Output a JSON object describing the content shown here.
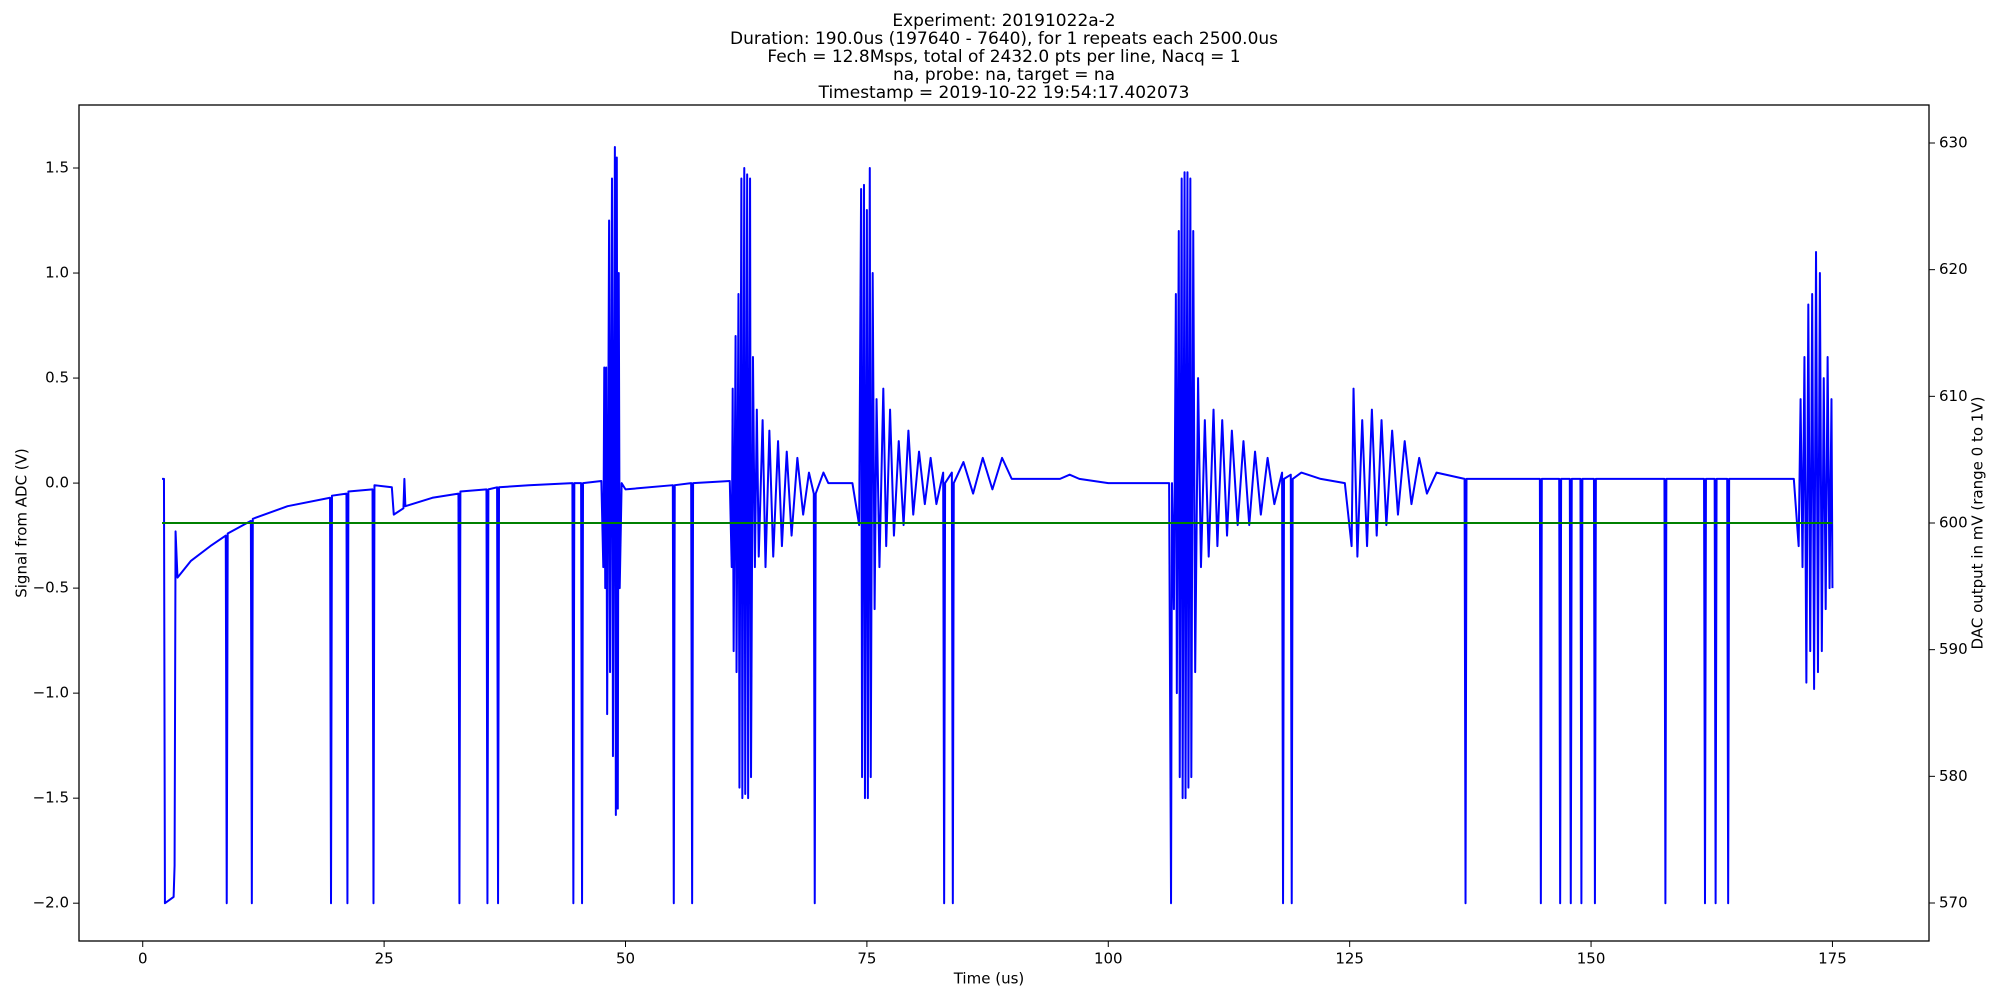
{
  "chart_data": {
    "type": "line",
    "title": [
      "Experiment: 20191022a-2",
      "Duration: 190.0us (197640 - 7640), for 1 repeats each 2500.0us",
      "Fech = 12.8Msps, total of 2432.0 pts per line, Nacq = 1",
      "na, probe: na, target = na",
      "Timestamp = 2019-10-22 19:54:17.402073"
    ],
    "x_label": "Time (us)",
    "y_label": "Signal from ADC (V)",
    "y2_label": "DAC output in mV (range 0 to 1V)",
    "y_label_color": "#0000cc",
    "y2_label_color": "#008000",
    "xlim": [
      -6.6,
      185
    ],
    "ylim": [
      -2.18,
      1.8
    ],
    "y2lim": [
      567,
      633
    ],
    "xticks": [
      0,
      25,
      50,
      75,
      100,
      125,
      150,
      175
    ],
    "yticks": [
      {
        "value": -2,
        "label": "−2.0"
      },
      {
        "value": -1.5,
        "label": "−1.5"
      },
      {
        "value": -1,
        "label": "−1.0"
      },
      {
        "value": -0.5,
        "label": "−0.5"
      },
      {
        "value": 0,
        "label": "0.0"
      },
      {
        "value": 0.5,
        "label": "0.5"
      },
      {
        "value": 1,
        "label": "1.0"
      },
      {
        "value": 1.5,
        "label": "1.5"
      }
    ],
    "y2ticks": [
      570,
      580,
      590,
      600,
      610,
      620,
      630
    ],
    "grid": false,
    "series": [
      {
        "color": "#0000ff",
        "x": [
          2.0,
          2.2,
          2.3,
          3.2,
          3.3,
          3.4,
          3.6,
          5,
          7,
          8.6,
          8.7,
          8.8,
          11.2,
          11.3,
          11.4,
          15,
          19.4,
          19.5,
          19.6,
          21.1,
          21.2,
          21.3,
          23.8,
          23.9,
          24.0,
          25.8,
          26.0,
          27,
          27.1,
          27.2,
          30,
          32.7,
          32.8,
          32.9,
          35.6,
          35.7,
          35.8,
          36.7,
          36.8,
          36.9,
          40,
          44.5,
          44.6,
          44.7,
          45.4,
          45.5,
          45.6,
          47.5,
          47.7,
          47.8,
          47.9,
          48.0,
          48.1,
          48.3,
          48.4,
          48.6,
          48.7,
          48.9,
          49.0,
          49.1,
          49.2,
          49.3,
          49.4,
          49.6,
          50,
          54.9,
          55.0,
          55.1,
          56.8,
          56.9,
          57.0,
          60.8,
          61.0,
          61.1,
          61.2,
          61.4,
          61.5,
          61.7,
          61.8,
          62.0,
          62.1,
          62.3,
          62.4,
          62.6,
          62.7,
          62.9,
          63.0,
          63.2,
          63.4,
          63.6,
          63.8,
          64.2,
          64.5,
          64.9,
          65.3,
          65.8,
          66.2,
          66.7,
          67.2,
          67.8,
          68.4,
          69.0,
          69.5,
          69.6,
          69.7,
          70.5,
          71,
          73.5,
          74.2,
          74.4,
          74.5,
          74.7,
          74.8,
          75.0,
          75.1,
          75.3,
          75.4,
          75.6,
          75.8,
          76.0,
          76.3,
          76.7,
          77.0,
          77.4,
          77.8,
          78.3,
          78.8,
          79.3,
          79.8,
          80.4,
          81,
          81.6,
          82.2,
          82.9,
          83.0,
          83.1,
          83.8,
          83.9,
          84.0,
          85,
          86,
          87,
          88,
          89,
          90,
          95,
          96,
          97,
          100,
          105,
          106.3,
          106.5,
          106.6,
          106.8,
          107.0,
          107.1,
          107.3,
          107.4,
          107.6,
          107.7,
          107.9,
          108.0,
          108.2,
          108.3,
          108.5,
          108.6,
          108.8,
          109.0,
          109.3,
          109.6,
          110.0,
          110.4,
          110.9,
          111.3,
          111.8,
          112.3,
          112.8,
          113.4,
          114,
          114.6,
          115.2,
          115.8,
          116.5,
          117.2,
          118.0,
          118.1,
          118.2,
          118.9,
          119.0,
          119.1,
          120,
          122,
          124.5,
          125.2,
          125.4,
          125.8,
          126.3,
          126.8,
          127.3,
          127.8,
          128.3,
          128.8,
          129.4,
          130,
          130.7,
          131.4,
          132.2,
          133,
          134,
          136.9,
          137.0,
          137.1,
          144.7,
          144.8,
          144.9,
          146.7,
          146.8,
          146.9,
          147.8,
          147.9,
          148.0,
          148.9,
          149.0,
          149.1,
          150.3,
          150.4,
          150.5,
          157.6,
          157.7,
          157.8,
          161.7,
          161.8,
          161.9,
          162.8,
          162.9,
          163.0,
          164.1,
          164.2,
          164.3,
          171.0,
          171.5,
          171.7,
          171.9,
          172.1,
          172.3,
          172.5,
          172.7,
          172.9,
          173.1,
          173.3,
          173.5,
          173.7,
          173.9,
          174.1,
          174.3,
          174.5,
          174.7,
          174.9,
          175.0
        ],
        "values": [
          0.02,
          0.02,
          -2.0,
          -1.97,
          -1.82,
          -0.23,
          -0.45,
          -0.37,
          -0.3,
          -0.25,
          -2.0,
          -0.24,
          -0.18,
          -2.0,
          -0.17,
          -0.11,
          -0.07,
          -2.0,
          -0.06,
          -0.05,
          -2.0,
          -0.04,
          -0.03,
          -2.0,
          -0.01,
          -0.02,
          -0.15,
          -0.12,
          0.02,
          -0.11,
          -0.07,
          -0.05,
          -2.0,
          -0.04,
          -0.03,
          -2.0,
          -0.03,
          -0.02,
          -2.0,
          -0.02,
          -0.01,
          0.0,
          -2.0,
          0.0,
          0.0,
          -2.0,
          0.0,
          0.01,
          -0.4,
          0.55,
          -0.5,
          0.55,
          -1.1,
          1.25,
          -0.9,
          1.45,
          -1.3,
          1.6,
          -1.58,
          1.55,
          -1.55,
          1.0,
          -0.5,
          0.0,
          -0.03,
          -0.01,
          -2.0,
          -0.01,
          0.0,
          -2.0,
          0.0,
          0.01,
          -0.4,
          0.45,
          -0.8,
          0.7,
          -0.9,
          0.9,
          -1.45,
          1.45,
          -1.5,
          1.5,
          -1.48,
          1.47,
          -1.5,
          1.45,
          -1.4,
          0.6,
          -0.4,
          0.35,
          -0.35,
          0.3,
          -0.4,
          0.25,
          -0.35,
          0.2,
          -0.3,
          0.15,
          -0.25,
          0.12,
          -0.15,
          0.05,
          -0.05,
          -2.0,
          -0.05,
          0.05,
          0.0,
          0.0,
          -0.2,
          1.4,
          -1.4,
          1.42,
          -1.5,
          1.3,
          -1.5,
          1.5,
          -1.4,
          1.0,
          -0.6,
          0.4,
          -0.4,
          0.45,
          -0.3,
          0.35,
          -0.25,
          0.2,
          -0.2,
          0.25,
          -0.15,
          0.15,
          -0.1,
          0.12,
          -0.1,
          0.05,
          -2.0,
          0.0,
          0.05,
          -2.0,
          0.0,
          0.1,
          -0.05,
          0.12,
          -0.03,
          0.12,
          0.02,
          0.02,
          0.04,
          0.02,
          0.0,
          0.0,
          0.0,
          -2.0,
          0.0,
          -0.6,
          0.9,
          -1.0,
          1.2,
          -1.4,
          1.45,
          -1.5,
          1.48,
          -1.5,
          1.48,
          -1.45,
          1.45,
          -1.4,
          1.2,
          -0.9,
          0.5,
          -0.4,
          0.3,
          -0.35,
          0.35,
          -0.3,
          0.3,
          -0.25,
          0.25,
          -0.2,
          0.2,
          -0.2,
          0.15,
          -0.15,
          0.12,
          -0.1,
          0.05,
          -2.0,
          0.02,
          0.04,
          -2.0,
          0.02,
          0.05,
          0.02,
          0.0,
          -0.3,
          0.45,
          -0.35,
          0.3,
          -0.3,
          0.35,
          -0.25,
          0.3,
          -0.2,
          0.25,
          -0.15,
          0.2,
          -0.1,
          0.12,
          -0.05,
          0.05,
          0.02,
          -2.0,
          0.02,
          0.02,
          -2.0,
          0.02,
          0.02,
          -2.0,
          0.02,
          0.02,
          -2.0,
          0.02,
          0.02,
          -2.0,
          0.02,
          0.02,
          -2.0,
          0.02,
          0.02,
          -2.0,
          0.02,
          0.02,
          -2.0,
          0.02,
          0.02,
          -2.0,
          0.02,
          0.02,
          -2.0,
          0.02,
          0.02,
          -0.3,
          0.4,
          -0.4,
          0.6,
          -0.95,
          0.85,
          -0.8,
          0.9,
          -0.98,
          1.1,
          -0.9,
          1.0,
          -0.8,
          0.5,
          -0.6,
          0.6,
          -0.5,
          0.4,
          -0.5
        ]
      },
      {
        "color": "#008000",
        "axis": "y2",
        "x": [
          2,
          175
        ],
        "values": [
          600,
          600
        ]
      }
    ]
  }
}
